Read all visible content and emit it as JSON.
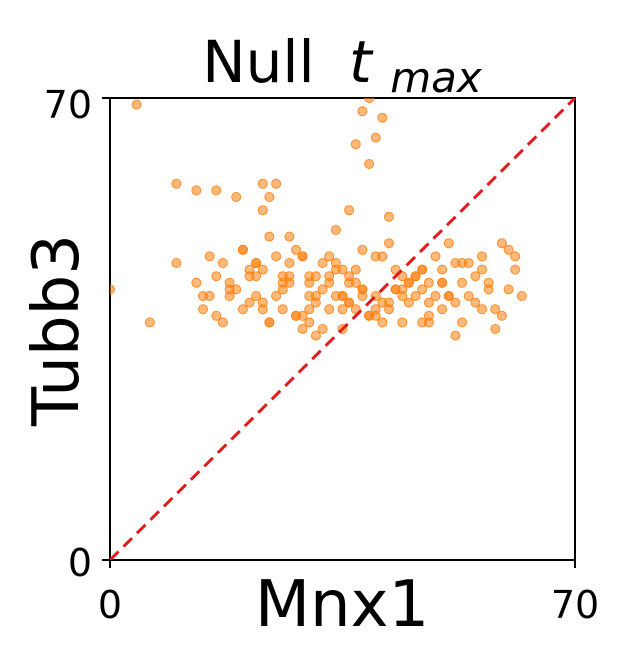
{
  "chart_data": {
    "type": "scatter",
    "title": "Null",
    "title_math": "t",
    "title_sub": "max",
    "xlabel": "Mnx1",
    "ylabel": "Tubb3",
    "xlim": [
      0,
      70
    ],
    "ylim": [
      0,
      70
    ],
    "xticks": [
      "0",
      "70"
    ],
    "yticks": [
      "0",
      "70"
    ],
    "grid": false,
    "point_color": "#ff7f0e",
    "diagonal_color": "#e31a1c",
    "diagonal": [
      [
        0,
        0
      ],
      [
        70,
        70
      ]
    ],
    "series": [
      {
        "x": [
          6,
          0,
          4,
          10,
          13,
          16,
          14,
          19,
          23,
          20,
          24,
          25,
          17,
          16,
          18,
          15,
          22,
          21,
          23,
          28,
          26,
          27,
          30,
          24,
          23,
          29,
          33,
          32,
          34,
          35,
          36,
          31,
          30,
          33,
          35,
          37,
          38,
          34,
          36,
          37,
          38,
          40,
          39,
          41,
          39,
          42,
          40,
          43,
          42,
          45,
          44,
          47,
          46,
          49,
          48,
          50,
          52,
          51,
          55,
          56,
          53,
          54,
          57,
          58,
          60,
          61,
          59,
          62,
          10,
          16,
          13,
          20,
          22,
          25,
          27,
          28,
          30,
          32,
          29,
          35,
          38,
          40,
          36,
          42,
          45,
          47,
          50,
          48,
          52,
          55,
          58,
          60,
          61,
          17,
          19,
          21,
          24,
          26,
          29,
          31,
          34,
          37,
          39,
          41,
          43,
          46,
          48,
          51,
          53,
          56,
          15,
          18,
          22,
          26,
          30,
          33,
          36,
          39,
          44,
          47,
          50,
          53,
          20,
          23,
          27,
          31,
          35,
          38,
          41,
          45,
          49,
          52,
          21,
          25,
          28,
          32,
          36,
          40,
          43,
          47,
          51,
          24,
          27,
          30,
          34,
          38,
          42,
          46,
          50,
          14,
          22,
          29,
          33,
          37,
          41,
          44,
          48,
          54,
          57,
          59,
          56,
          35,
          31,
          44,
          26,
          40,
          18,
          23
        ],
        "y": [
          36,
          41,
          69,
          57,
          56,
          56,
          40,
          55,
          57,
          47,
          55,
          57,
          45,
          43,
          40,
          40,
          40,
          39,
          38,
          37,
          41,
          45,
          43,
          49,
          53,
          46,
          43,
          41,
          45,
          40,
          39,
          34,
          36,
          38,
          35,
          42,
          47,
          50,
          53,
          63,
          68,
          64,
          60,
          67,
          70,
          52,
          46,
          44,
          38,
          42,
          36,
          44,
          40,
          46,
          37,
          42,
          34,
          48,
          39,
          44,
          36,
          40,
          42,
          38,
          47,
          44,
          37,
          40,
          45,
          37,
          42,
          47,
          45,
          46,
          49,
          47,
          38,
          35,
          46,
          44,
          40,
          37,
          43,
          48,
          39,
          36,
          38,
          42,
          45,
          43,
          35,
          41,
          46,
          36,
          41,
          43,
          36,
          42,
          35,
          40,
          44,
          38,
          37,
          46,
          41,
          43,
          36,
          40,
          45,
          38,
          46,
          42,
          45,
          38,
          40,
          46,
          39,
          37,
          43,
          41,
          44,
          42,
          38,
          39,
          42,
          43,
          38,
          41,
          39,
          42,
          40,
          39,
          44,
          40,
          37,
          45,
          42,
          38,
          41,
          44,
          40,
          36,
          43,
          42,
          40,
          41,
          39,
          43,
          42,
          38,
          43,
          37,
          42,
          44,
          36,
          40,
          39,
          45,
          41,
          48,
          46,
          40,
          39,
          41,
          43,
          40,
          41,
          44
        ],
        "size": 4.5
      }
    ]
  }
}
